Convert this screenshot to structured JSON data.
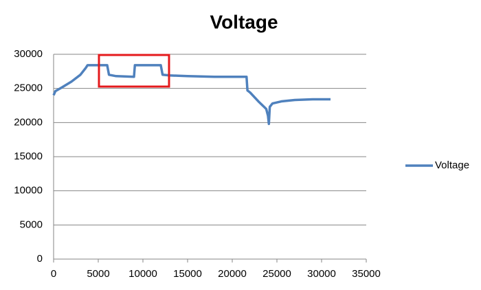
{
  "chart_data": {
    "type": "line",
    "title": "Voltage",
    "series": [
      {
        "name": "Voltage",
        "color": "#4f81bd",
        "x": [
          0,
          200,
          1000,
          2000,
          3000,
          3600,
          3800,
          6000,
          6200,
          7000,
          9000,
          9100,
          12000,
          12200,
          13000,
          15000,
          18000,
          21600,
          21700,
          22000,
          23000,
          23800,
          24000,
          24100,
          24200,
          24500,
          25500,
          27000,
          29000,
          31000
        ],
        "values": [
          24000,
          24600,
          25200,
          26000,
          27000,
          28000,
          28400,
          28400,
          27000,
          26800,
          26700,
          28400,
          28400,
          27000,
          26900,
          26800,
          26700,
          26700,
          24700,
          24400,
          23000,
          22000,
          21000,
          19800,
          22300,
          22800,
          23100,
          23300,
          23400,
          23400
        ]
      }
    ],
    "xlim": [
      0,
      35000
    ],
    "xticks": [
      0,
      5000,
      10000,
      15000,
      20000,
      25000,
      30000,
      35000
    ],
    "ylim": [
      0,
      30000
    ],
    "yticks": [
      0,
      5000,
      10000,
      15000,
      20000,
      25000,
      30000
    ],
    "grid": true,
    "legend": "right"
  }
}
